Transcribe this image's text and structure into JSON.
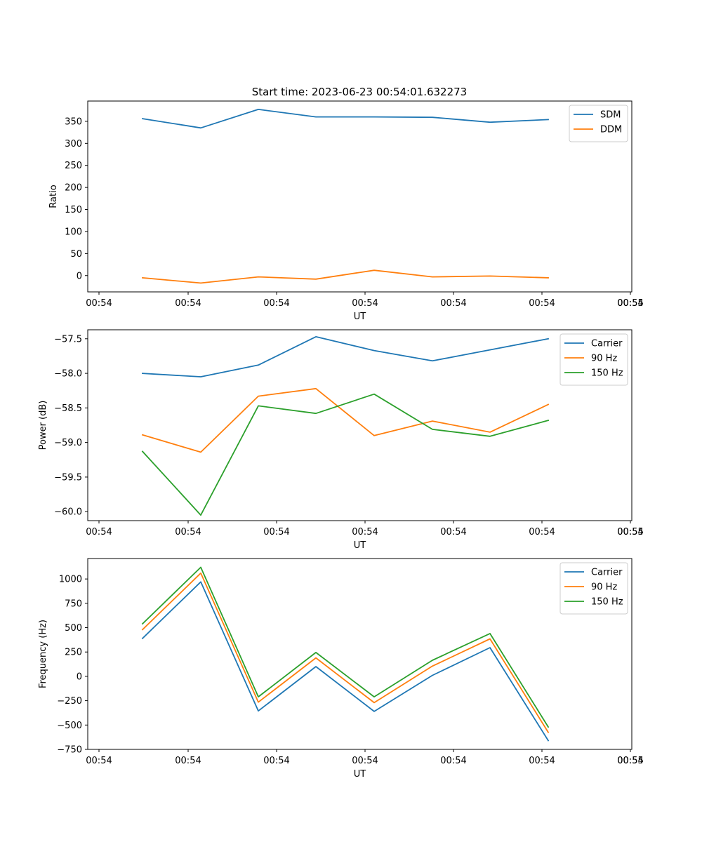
{
  "title": "Start time: 2023-06-23 00:54:01.632273",
  "colors": {
    "blue": "#1f77b4",
    "orange": "#ff7f0e",
    "green": "#2ca02c"
  },
  "chart_data": [
    {
      "type": "line",
      "xlabel": "UT",
      "ylabel": "Ratio",
      "x_tick_labels": [
        "00:54",
        "00:54",
        "00:54",
        "00:54",
        "00:54",
        "00:54",
        "00:54",
        "00:55"
      ],
      "y_ticks": [
        0,
        50,
        100,
        150,
        200,
        250,
        300,
        350
      ],
      "ylim": [
        -37,
        396
      ],
      "grid": false,
      "legend_position": "top-right",
      "series": [
        {
          "name": "SDM",
          "color": "#1f77b4",
          "values": [
            356,
            335,
            377,
            360,
            360,
            359,
            348,
            354
          ]
        },
        {
          "name": "DDM",
          "color": "#ff7f0e",
          "values": [
            -5,
            -17,
            -3,
            -8,
            12,
            -3,
            -1,
            -5
          ]
        }
      ]
    },
    {
      "type": "line",
      "xlabel": "UT",
      "ylabel": "Power (dB)",
      "x_tick_labels": [
        "00:54",
        "00:54",
        "00:54",
        "00:54",
        "00:54",
        "00:54",
        "00:54",
        "00:55"
      ],
      "y_ticks": [
        -60.0,
        -59.5,
        -59.0,
        -58.5,
        -58.0,
        -57.5
      ],
      "y_tick_labels": [
        "−60.0",
        "−59.5",
        "−59.0",
        "−58.5",
        "−58.0",
        "−57.5"
      ],
      "ylim": [
        -60.13,
        -57.37
      ],
      "grid": false,
      "legend_position": "top-right",
      "series": [
        {
          "name": "Carrier",
          "color": "#1f77b4",
          "values": [
            -58.0,
            -58.05,
            -57.88,
            -57.47,
            -57.67,
            -57.82,
            -57.66,
            -57.5
          ]
        },
        {
          "name": "90 Hz",
          "color": "#ff7f0e",
          "values": [
            -58.89,
            -59.14,
            -58.33,
            -58.22,
            -58.9,
            -58.69,
            -58.85,
            -58.45
          ]
        },
        {
          "name": "150 Hz",
          "color": "#2ca02c",
          "values": [
            -59.13,
            -60.05,
            -58.47,
            -58.58,
            -58.3,
            -58.81,
            -58.91,
            -58.68
          ]
        }
      ]
    },
    {
      "type": "line",
      "xlabel": "UT",
      "ylabel": "Frequency (Hz)",
      "x_tick_labels": [
        "00:54",
        "00:54",
        "00:54",
        "00:54",
        "00:54",
        "00:54",
        "00:54",
        "00:55"
      ],
      "y_ticks": [
        -750,
        -500,
        -250,
        0,
        250,
        500,
        750,
        1000
      ],
      "y_tick_labels": [
        "−750",
        "−500",
        "−250",
        "0",
        "250",
        "500",
        "750",
        "1000"
      ],
      "ylim": [
        -750,
        1210
      ],
      "grid": false,
      "legend_position": "top-right",
      "series": [
        {
          "name": "Carrier",
          "color": "#1f77b4",
          "values": [
            390,
            970,
            -355,
            100,
            -360,
            10,
            295,
            -660
          ]
        },
        {
          "name": "90 Hz",
          "color": "#ff7f0e",
          "values": [
            480,
            1060,
            -265,
            190,
            -270,
            105,
            385,
            -575
          ]
        },
        {
          "name": "150 Hz",
          "color": "#2ca02c",
          "values": [
            540,
            1120,
            -210,
            245,
            -210,
            165,
            440,
            -520
          ]
        }
      ]
    }
  ]
}
